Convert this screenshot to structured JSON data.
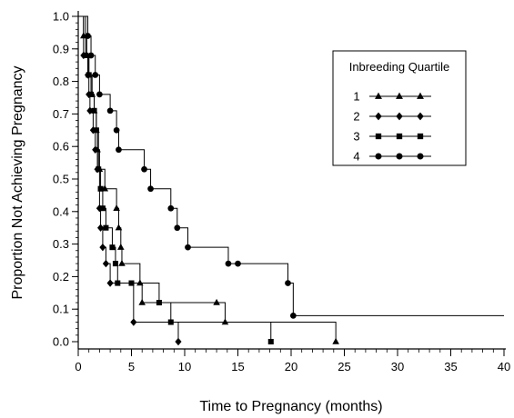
{
  "chart_data": {
    "type": "line",
    "step": true,
    "xlabel": "Time to Pregnancy (months)",
    "ylabel": "Proportion Not Achieving Pregnancy",
    "xlim": [
      0,
      40
    ],
    "ylim": [
      0,
      1.0
    ],
    "x_ticks": [
      0,
      5,
      10,
      15,
      20,
      25,
      30,
      35,
      40
    ],
    "y_ticks": [
      0.0,
      0.1,
      0.2,
      0.3,
      0.4,
      0.5,
      0.6,
      0.7,
      0.8,
      0.9,
      1.0
    ],
    "legend_title": "Inbreeding Quartile",
    "legend_position": "top-right",
    "grid": false,
    "series": [
      {
        "name": "1",
        "marker": "triangle",
        "points": [
          {
            "x": 0,
            "y": 1.0
          },
          {
            "x": 0.5,
            "y": 0.94
          },
          {
            "x": 0.8,
            "y": 0.88
          },
          {
            "x": 1.0,
            "y": 0.82
          },
          {
            "x": 1.3,
            "y": 0.76
          },
          {
            "x": 1.5,
            "y": 0.71
          },
          {
            "x": 1.7,
            "y": 0.65
          },
          {
            "x": 1.8,
            "y": 0.59
          },
          {
            "x": 2.0,
            "y": 0.53
          },
          {
            "x": 2.5,
            "y": 0.47
          },
          {
            "x": 3.6,
            "y": 0.41
          },
          {
            "x": 3.8,
            "y": 0.35
          },
          {
            "x": 4.0,
            "y": 0.29
          },
          {
            "x": 4.1,
            "y": 0.24
          },
          {
            "x": 5.8,
            "y": 0.18
          },
          {
            "x": 6.0,
            "y": 0.12
          },
          {
            "x": 13.0,
            "y": 0.12
          },
          {
            "x": 13.8,
            "y": 0.06
          },
          {
            "x": 24.2,
            "y": 0.0
          }
        ]
      },
      {
        "name": "2",
        "marker": "diamond",
        "points": [
          {
            "x": 0,
            "y": 1.0
          },
          {
            "x": 0.5,
            "y": 0.88
          },
          {
            "x": 0.9,
            "y": 0.82
          },
          {
            "x": 1.0,
            "y": 0.76
          },
          {
            "x": 1.1,
            "y": 0.71
          },
          {
            "x": 1.4,
            "y": 0.65
          },
          {
            "x": 1.6,
            "y": 0.59
          },
          {
            "x": 1.8,
            "y": 0.53
          },
          {
            "x": 2.0,
            "y": 0.41
          },
          {
            "x": 2.1,
            "y": 0.35
          },
          {
            "x": 2.3,
            "y": 0.29
          },
          {
            "x": 2.6,
            "y": 0.24
          },
          {
            "x": 3.0,
            "y": 0.18
          },
          {
            "x": 5.2,
            "y": 0.06
          },
          {
            "x": 9.4,
            "y": 0.0
          }
        ]
      },
      {
        "name": "3",
        "marker": "square",
        "points": [
          {
            "x": 0,
            "y": 1.0
          },
          {
            "x": 0.7,
            "y": 0.88
          },
          {
            "x": 1.0,
            "y": 0.82
          },
          {
            "x": 1.2,
            "y": 0.76
          },
          {
            "x": 1.5,
            "y": 0.71
          },
          {
            "x": 1.7,
            "y": 0.65
          },
          {
            "x": 1.9,
            "y": 0.53
          },
          {
            "x": 2.1,
            "y": 0.47
          },
          {
            "x": 2.3,
            "y": 0.41
          },
          {
            "x": 2.6,
            "y": 0.35
          },
          {
            "x": 3.2,
            "y": 0.29
          },
          {
            "x": 3.5,
            "y": 0.24
          },
          {
            "x": 3.7,
            "y": 0.18
          },
          {
            "x": 5.0,
            "y": 0.18
          },
          {
            "x": 7.6,
            "y": 0.12
          },
          {
            "x": 8.7,
            "y": 0.06
          },
          {
            "x": 18.1,
            "y": 0.0
          }
        ]
      },
      {
        "name": "4",
        "marker": "circle",
        "points": [
          {
            "x": 0,
            "y": 1.0
          },
          {
            "x": 0.9,
            "y": 0.94
          },
          {
            "x": 1.2,
            "y": 0.88
          },
          {
            "x": 1.6,
            "y": 0.82
          },
          {
            "x": 2.0,
            "y": 0.76
          },
          {
            "x": 3.0,
            "y": 0.71
          },
          {
            "x": 3.6,
            "y": 0.65
          },
          {
            "x": 3.8,
            "y": 0.59
          },
          {
            "x": 6.2,
            "y": 0.53
          },
          {
            "x": 6.8,
            "y": 0.47
          },
          {
            "x": 8.7,
            "y": 0.41
          },
          {
            "x": 9.3,
            "y": 0.35
          },
          {
            "x": 10.3,
            "y": 0.29
          },
          {
            "x": 14.1,
            "y": 0.24
          },
          {
            "x": 15.0,
            "y": 0.24
          },
          {
            "x": 19.7,
            "y": 0.18
          },
          {
            "x": 20.2,
            "y": 0.08
          },
          {
            "x": 40.0,
            "y": 0.08
          }
        ]
      }
    ]
  }
}
